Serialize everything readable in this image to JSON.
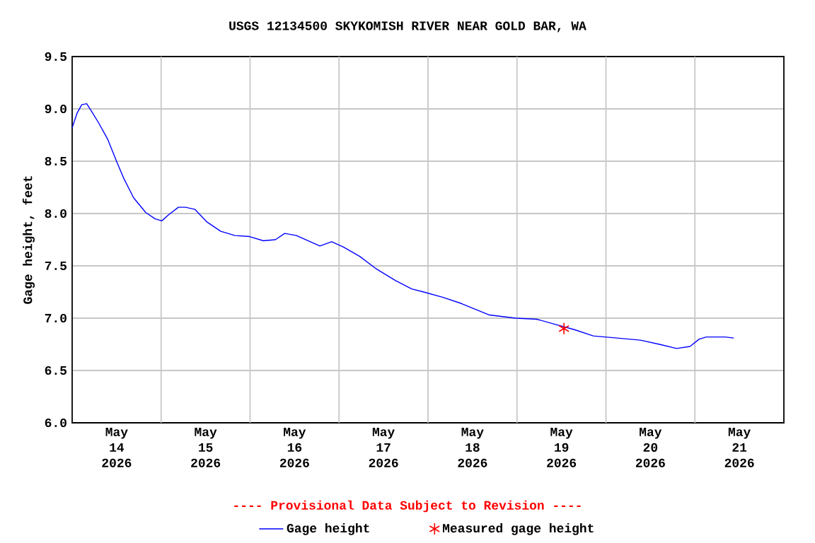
{
  "chart_data": {
    "type": "line",
    "title": "USGS 12134500 SKYKOMISH RIVER NEAR GOLD BAR, WA",
    "ylabel": "Gage height, feet",
    "annotations": [
      "---- Provisional Data Subject to Revision ----"
    ],
    "xlim": [
      "2026-05-14T00:00",
      "2026-05-22T00:00"
    ],
    "xticks": [
      {
        "value": "2026-05-14T12:00",
        "label": "May 14 2026"
      },
      {
        "value": "2026-05-15T12:00",
        "label": "May 15 2026"
      },
      {
        "value": "2026-05-16T12:00",
        "label": "May 16 2026"
      },
      {
        "value": "2026-05-17T12:00",
        "label": "May 17 2026"
      },
      {
        "value": "2026-05-18T12:00",
        "label": "May 18 2026"
      },
      {
        "value": "2026-05-19T12:00",
        "label": "May 19 2026"
      },
      {
        "value": "2026-05-20T12:00",
        "label": "May 20 2026"
      },
      {
        "value": "2026-05-21T12:00",
        "label": "May 21 2026"
      },
      {
        "value": "2026-05-15T00:00",
        "label": null
      },
      {
        "value": "2026-05-16T00:00",
        "label": null
      },
      {
        "value": "2026-05-17T00:00",
        "label": null
      },
      {
        "value": "2026-05-18T00:00",
        "label": null
      },
      {
        "value": "2026-05-19T00:00",
        "label": null
      },
      {
        "value": "2026-05-20T00:00",
        "label": null
      },
      {
        "value": "2026-05-21T00:00",
        "label": null
      }
    ],
    "ylim": [
      6.0,
      9.5
    ],
    "yticks": [
      {
        "value": 6.0,
        "label": "6.0"
      },
      {
        "value": 6.5,
        "label": "6.5"
      },
      {
        "value": 7.0,
        "label": "7.0"
      },
      {
        "value": 7.5,
        "label": "7.5"
      },
      {
        "value": 8.0,
        "label": "8.0"
      },
      {
        "value": 8.5,
        "label": "8.5"
      },
      {
        "value": 9.0,
        "label": "9.0"
      },
      {
        "value": 9.5,
        "label": "9.5"
      }
    ],
    "grid": true,
    "legend": "bottom",
    "series": [
      {
        "name": "Gage height",
        "type": "line",
        "color": "#0000ff",
        "x": [
          "2026-05-14T00:00",
          "2026-05-14T01:20",
          "2026-05-14T02:35",
          "2026-05-14T03:55",
          "2026-05-14T05:10",
          "2026-05-14T07:05",
          "2026-05-14T09:35",
          "2026-05-14T12:05",
          "2026-05-14T14:00",
          "2026-05-14T16:35",
          "2026-05-14T19:50",
          "2026-05-14T22:20",
          "2026-05-15T00:10",
          "2026-05-15T02:05",
          "2026-05-15T04:40",
          "2026-05-15T06:35",
          "2026-05-15T09:05",
          "2026-05-15T12:20",
          "2026-05-15T16:05",
          "2026-05-15T19:55",
          "2026-05-15T23:50",
          "2026-05-16T03:35",
          "2026-05-16T06:50",
          "2026-05-16T09:20",
          "2026-05-16T12:30",
          "2026-05-16T15:35",
          "2026-05-16T18:50",
          "2026-05-16T22:00",
          "2026-05-17T01:10",
          "2026-05-17T05:35",
          "2026-05-17T10:05",
          "2026-05-17T15:10",
          "2026-05-17T19:35",
          "2026-05-17T22:50",
          "2026-05-18T03:55",
          "2026-05-18T09:00",
          "2026-05-18T16:35",
          "2026-05-18T23:40",
          "2026-05-19T05:20",
          "2026-05-19T10:25",
          "2026-05-19T15:30",
          "2026-05-19T20:35",
          "2026-05-20T03:00",
          "2026-05-20T09:20",
          "2026-05-20T14:25",
          "2026-05-20T19:05",
          "2026-05-20T22:40",
          "2026-05-21T01:10",
          "2026-05-21T03:05",
          "2026-05-21T08:10",
          "2026-05-21T10:30"
        ],
        "values": [
          8.82,
          8.96,
          9.04,
          9.05,
          8.98,
          8.87,
          8.71,
          8.49,
          8.33,
          8.15,
          8.01,
          7.95,
          7.93,
          7.99,
          8.06,
          8.06,
          8.04,
          7.92,
          7.83,
          7.79,
          7.78,
          7.74,
          7.75,
          7.81,
          7.79,
          7.74,
          7.69,
          7.73,
          7.68,
          7.59,
          7.47,
          7.36,
          7.28,
          7.25,
          7.2,
          7.14,
          7.03,
          7.0,
          6.99,
          6.94,
          6.89,
          6.83,
          6.81,
          6.79,
          6.75,
          6.71,
          6.73,
          6.8,
          6.82,
          6.82,
          6.81
        ]
      },
      {
        "name": "Measured gage height",
        "type": "scatter",
        "marker": "cross",
        "color": "#ff0000",
        "x": [
          "2026-05-19T12:40"
        ],
        "values": [
          6.9
        ]
      }
    ]
  }
}
